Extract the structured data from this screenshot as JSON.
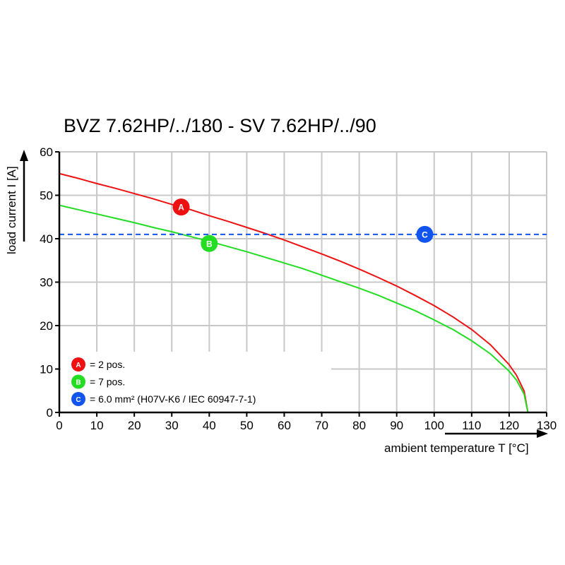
{
  "chart_data": {
    "type": "line",
    "title": "BVZ 7.62HP/../180 - SV 7.62HP/../90",
    "xlabel": "ambient temperature T [°C]",
    "ylabel": "load current I [A]",
    "xlim": [
      0,
      130
    ],
    "ylim": [
      0,
      60
    ],
    "xticks": [
      0,
      10,
      20,
      30,
      40,
      50,
      60,
      70,
      80,
      90,
      100,
      110,
      120,
      130
    ],
    "yticks": [
      0,
      10,
      20,
      30,
      40,
      50,
      60
    ],
    "grid": true,
    "legend_placement": "bottom-left",
    "series": [
      {
        "marker": "A",
        "color": "#ee1111",
        "x": [
          0,
          5,
          10,
          15,
          20,
          25,
          30,
          35,
          40,
          45,
          50,
          55,
          60,
          65,
          70,
          75,
          80,
          85,
          90,
          95,
          100,
          105,
          110,
          115,
          120,
          122,
          124,
          125
        ],
        "y": [
          55.0,
          53.9,
          52.7,
          51.6,
          50.4,
          49.2,
          47.9,
          46.7,
          45.3,
          44.0,
          42.6,
          41.2,
          39.7,
          38.1,
          36.5,
          34.8,
          33.0,
          31.1,
          29.1,
          26.9,
          24.6,
          22.0,
          19.1,
          15.6,
          11.0,
          8.5,
          4.9,
          0
        ],
        "marker_at": [
          32.5,
          47.3
        ]
      },
      {
        "marker": "B",
        "color": "#22dd22",
        "x": [
          0,
          5,
          10,
          15,
          20,
          25,
          30,
          35,
          40,
          45,
          50,
          55,
          60,
          65,
          70,
          75,
          80,
          85,
          90,
          95,
          100,
          105,
          110,
          115,
          120,
          122,
          124,
          125
        ],
        "y": [
          47.7,
          46.7,
          45.7,
          44.7,
          43.7,
          42.6,
          41.6,
          40.5,
          39.4,
          38.2,
          37.0,
          35.7,
          34.4,
          33.1,
          31.6,
          30.1,
          28.6,
          27.0,
          25.2,
          23.4,
          21.3,
          19.1,
          16.5,
          13.5,
          9.5,
          7.4,
          4.2,
          0
        ],
        "marker_at": [
          40,
          38.9
        ]
      },
      {
        "marker": "C",
        "color": "#1155ee",
        "style": "dashed",
        "constant_y": 41,
        "marker_at": [
          97.5,
          41
        ]
      }
    ],
    "legend": [
      {
        "marker": "A",
        "color": "#ee1111",
        "text": "= 2 pos."
      },
      {
        "marker": "B",
        "color": "#22dd22",
        "text": "= 7 pos."
      },
      {
        "marker": "C",
        "color": "#1155ee",
        "text": "= 6.0 mm² (H07V-K6 / IEC 60947-7-1)"
      }
    ]
  }
}
